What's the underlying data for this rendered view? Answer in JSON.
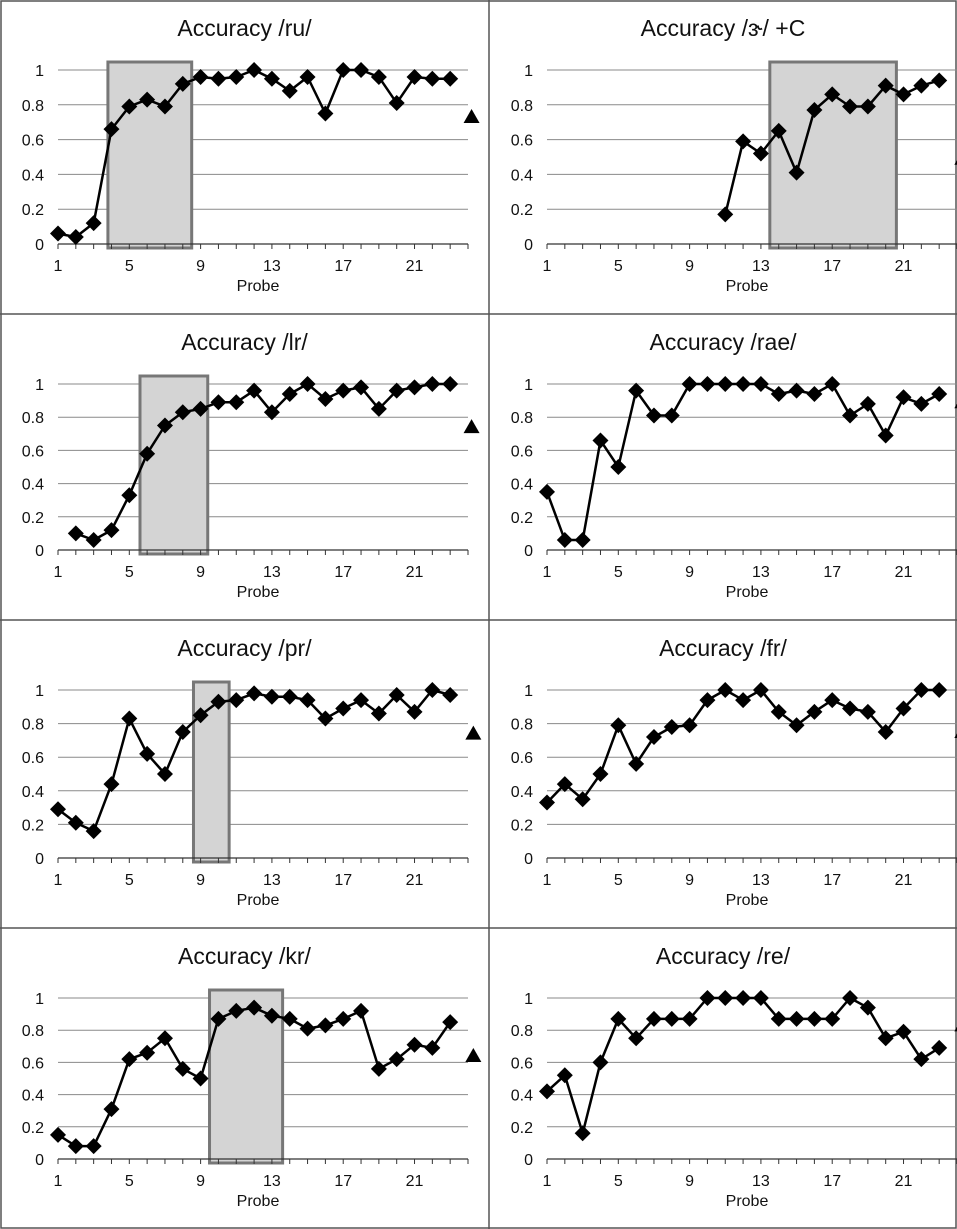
{
  "chart_data": [
    {
      "type": "line",
      "title": "Accuracy /ru/",
      "xlabel": "Probe",
      "ylabel": "",
      "ylim": [
        0,
        1
      ],
      "y_ticks": [
        "0",
        "0.2",
        "0.4",
        "0.6",
        "0.8",
        "1"
      ],
      "x_ticks": [
        "1",
        "5",
        "9",
        "13",
        "17",
        "21"
      ],
      "x_range": [
        1,
        24
      ],
      "grid": true,
      "series": [
        {
          "x": [
            1,
            2,
            3,
            4,
            5,
            6,
            7,
            8,
            9,
            10,
            11,
            12,
            13,
            14,
            15,
            16,
            17,
            18,
            19,
            20,
            21,
            22,
            23
          ],
          "y": [
            0.06,
            0.04,
            0.12,
            0.66,
            0.79,
            0.83,
            0.79,
            0.92,
            0.96,
            0.95,
            0.96,
            1.0,
            0.95,
            0.88,
            0.96,
            0.75,
            1.0,
            1.0,
            0.96,
            0.81,
            0.96,
            0.95,
            0.95
          ]
        }
      ],
      "highlight_x": [
        3.8,
        8.5
      ],
      "triangle": {
        "x": 24.2,
        "y": 0.73
      }
    },
    {
      "type": "line",
      "title": "Accuracy /ɝ/ +C",
      "xlabel": "Probe",
      "ylabel": "",
      "ylim": [
        0,
        1
      ],
      "y_ticks": [
        "0",
        "0.2",
        "0.4",
        "0.6",
        "0.8",
        "1"
      ],
      "x_ticks": [
        "1",
        "5",
        "9",
        "13",
        "17",
        "21"
      ],
      "x_range": [
        1,
        24
      ],
      "grid": true,
      "series": [
        {
          "x": [
            11,
            12,
            13,
            14,
            15,
            16,
            17,
            18,
            19,
            20,
            21,
            22,
            23
          ],
          "y": [
            0.17,
            0.59,
            0.52,
            0.65,
            0.41,
            0.77,
            0.86,
            0.79,
            0.79,
            0.91,
            0.86,
            0.91,
            0.94
          ]
        }
      ],
      "highlight_x": [
        13.5,
        20.6
      ],
      "triangle": {
        "x": 24.3,
        "y": 0.49
      }
    },
    {
      "type": "line",
      "title": "Accuracy /lr/",
      "xlabel": "Probe",
      "ylabel": "",
      "ylim": [
        0,
        1
      ],
      "y_ticks": [
        "0",
        "0.2",
        "0.4",
        "0.6",
        "0.8",
        "1"
      ],
      "x_ticks": [
        "1",
        "5",
        "9",
        "13",
        "17",
        "21"
      ],
      "x_range": [
        1,
        24
      ],
      "grid": true,
      "series": [
        {
          "x": [
            2,
            3,
            4,
            5,
            6,
            7,
            8,
            9,
            10,
            11,
            12,
            13,
            14,
            15,
            16,
            17,
            18,
            19,
            20,
            21,
            22,
            23
          ],
          "y": [
            0.1,
            0.06,
            0.12,
            0.33,
            0.58,
            0.75,
            0.83,
            0.85,
            0.89,
            0.89,
            0.96,
            0.83,
            0.94,
            1.0,
            0.91,
            0.96,
            0.98,
            0.85,
            0.96,
            0.98,
            1.0,
            1.0
          ]
        }
      ],
      "highlight_x": [
        5.6,
        9.4
      ],
      "triangle": {
        "x": 24.2,
        "y": 0.74
      }
    },
    {
      "type": "line",
      "title": "Accuracy /rae/",
      "xlabel": "Probe",
      "ylabel": "",
      "ylim": [
        0,
        1
      ],
      "y_ticks": [
        "0",
        "0.2",
        "0.4",
        "0.6",
        "0.8",
        "1"
      ],
      "x_ticks": [
        "1",
        "5",
        "9",
        "13",
        "17",
        "21"
      ],
      "x_range": [
        1,
        24
      ],
      "grid": true,
      "series": [
        {
          "x": [
            1,
            2,
            3,
            4,
            5,
            6,
            7,
            8,
            9,
            10,
            11,
            12,
            13,
            14,
            15,
            16,
            17,
            18,
            19,
            20,
            21,
            22,
            23
          ],
          "y": [
            0.35,
            0.06,
            0.06,
            0.66,
            0.5,
            0.96,
            0.81,
            0.81,
            1.0,
            1.0,
            1.0,
            1.0,
            1.0,
            0.94,
            0.96,
            0.94,
            1.0,
            0.81,
            0.88,
            0.69,
            0.92,
            0.88,
            0.94
          ]
        }
      ],
      "highlight_x": null,
      "triangle": {
        "x": 24.3,
        "y": 0.89
      }
    },
    {
      "type": "line",
      "title": "Accuracy /pr/",
      "xlabel": "Probe",
      "ylabel": "",
      "ylim": [
        0,
        1
      ],
      "y_ticks": [
        "0",
        "0.2",
        "0.4",
        "0.6",
        "0.8",
        "1"
      ],
      "x_ticks": [
        "1",
        "5",
        "9",
        "13",
        "17",
        "21"
      ],
      "x_range": [
        1,
        24
      ],
      "grid": true,
      "series": [
        {
          "x": [
            1,
            2,
            3,
            4,
            5,
            6,
            7,
            8,
            9,
            10,
            11,
            12,
            13,
            14,
            15,
            16,
            17,
            18,
            19,
            20,
            21,
            22,
            23
          ],
          "y": [
            0.29,
            0.21,
            0.16,
            0.44,
            0.83,
            0.62,
            0.5,
            0.75,
            0.85,
            0.93,
            0.94,
            0.98,
            0.96,
            0.96,
            0.94,
            0.83,
            0.89,
            0.94,
            0.86,
            0.97,
            0.87,
            1.0,
            0.97
          ]
        }
      ],
      "highlight_x": [
        8.6,
        10.6
      ],
      "triangle": {
        "x": 24.3,
        "y": 0.74
      }
    },
    {
      "type": "line",
      "title": "Accuracy /fr/",
      "xlabel": "Probe",
      "ylabel": "",
      "ylim": [
        0,
        1
      ],
      "y_ticks": [
        "0",
        "0.2",
        "0.4",
        "0.6",
        "0.8",
        "1"
      ],
      "x_ticks": [
        "1",
        "5",
        "9",
        "13",
        "17",
        "21"
      ],
      "x_range": [
        1,
        24
      ],
      "grid": true,
      "series": [
        {
          "x": [
            1,
            2,
            3,
            4,
            5,
            6,
            7,
            8,
            9,
            10,
            11,
            12,
            13,
            14,
            15,
            16,
            17,
            18,
            19,
            20,
            21,
            22,
            23
          ],
          "y": [
            0.33,
            0.44,
            0.35,
            0.5,
            0.79,
            0.56,
            0.72,
            0.78,
            0.79,
            0.94,
            1.0,
            0.94,
            1.0,
            0.87,
            0.79,
            0.87,
            0.94,
            0.89,
            0.87,
            0.75,
            0.89,
            1.0,
            1.0
          ]
        }
      ],
      "highlight_x": null,
      "triangle": {
        "x": 24.3,
        "y": 0.75
      }
    },
    {
      "type": "line",
      "title": "Accuracy /kr/",
      "xlabel": "Probe",
      "ylabel": "",
      "ylim": [
        0,
        1
      ],
      "y_ticks": [
        "0",
        "0.2",
        "0.4",
        "0.6",
        "0.8",
        "1"
      ],
      "x_ticks": [
        "1",
        "5",
        "9",
        "13",
        "17",
        "21"
      ],
      "x_range": [
        1,
        24
      ],
      "grid": true,
      "series": [
        {
          "x": [
            1,
            2,
            3,
            4,
            5,
            6,
            7,
            8,
            9,
            10,
            11,
            12,
            13,
            14,
            15,
            16,
            17,
            18,
            19,
            20,
            21,
            22,
            23
          ],
          "y": [
            0.15,
            0.08,
            0.08,
            0.31,
            0.62,
            0.66,
            0.75,
            0.56,
            0.5,
            0.87,
            0.92,
            0.94,
            0.89,
            0.87,
            0.81,
            0.83,
            0.87,
            0.92,
            0.56,
            0.62,
            0.71,
            0.69,
            0.85
          ]
        }
      ],
      "highlight_x": [
        9.5,
        13.6
      ],
      "triangle": {
        "x": 24.3,
        "y": 0.64
      }
    },
    {
      "type": "line",
      "title": "Accuracy /re/",
      "xlabel": "Probe",
      "ylabel": "",
      "ylim": [
        0,
        1
      ],
      "y_ticks": [
        "0",
        "0.2",
        "0.4",
        "0.6",
        "0.8",
        "1"
      ],
      "x_ticks": [
        "1",
        "5",
        "9",
        "13",
        "17",
        "21"
      ],
      "x_range": [
        1,
        24
      ],
      "grid": true,
      "series": [
        {
          "x": [
            1,
            2,
            3,
            4,
            5,
            6,
            7,
            8,
            9,
            10,
            11,
            12,
            13,
            14,
            15,
            16,
            17,
            18,
            19,
            20,
            21,
            22,
            23
          ],
          "y": [
            0.42,
            0.52,
            0.16,
            0.6,
            0.87,
            0.75,
            0.87,
            0.87,
            0.87,
            1.0,
            1.0,
            1.0,
            1.0,
            0.87,
            0.87,
            0.87,
            0.87,
            1.0,
            0.94,
            0.75,
            0.79,
            0.62,
            0.69
          ]
        }
      ],
      "highlight_x": null,
      "triangle": {
        "x": 24.3,
        "y": 0.83
      }
    }
  ]
}
